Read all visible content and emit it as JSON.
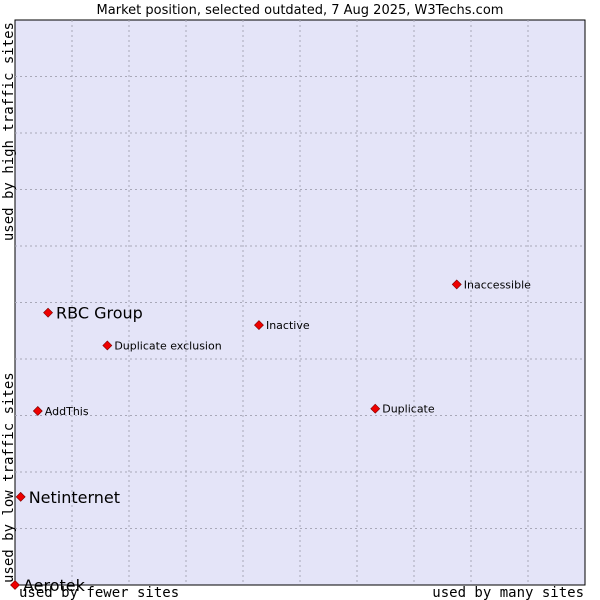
{
  "chart_data": {
    "type": "scatter",
    "title": "Market position, selected outdated, 7 Aug 2025, W3Techs.com",
    "xlabel_left": "used by fewer sites",
    "xlabel_right": "used by many sites",
    "ylabel_bottom": "used by low traffic sites",
    "ylabel_top": "used by high traffic sites",
    "xlim": [
      0,
      100
    ],
    "ylim": [
      0,
      100
    ],
    "grid": true,
    "point_color": "#ee0000",
    "background_color": "#e4e4f8",
    "points": [
      {
        "name": "RBC Group",
        "x": 5.8,
        "y": 48.2,
        "emphasis": true
      },
      {
        "name": "Netinternet",
        "x": 1.0,
        "y": 15.6,
        "emphasis": true
      },
      {
        "name": "Aerotek",
        "x": 0,
        "y": 0,
        "emphasis": true
      },
      {
        "name": "Inaccessible",
        "x": 77.5,
        "y": 53.2,
        "emphasis": false
      },
      {
        "name": "Inactive",
        "x": 42.8,
        "y": 46.0,
        "emphasis": false
      },
      {
        "name": "Duplicate exclusion",
        "x": 16.2,
        "y": 42.4,
        "emphasis": false
      },
      {
        "name": "AddThis",
        "x": 4.0,
        "y": 30.8,
        "emphasis": false
      },
      {
        "name": "Duplicate",
        "x": 63.2,
        "y": 31.2,
        "emphasis": false
      }
    ]
  }
}
